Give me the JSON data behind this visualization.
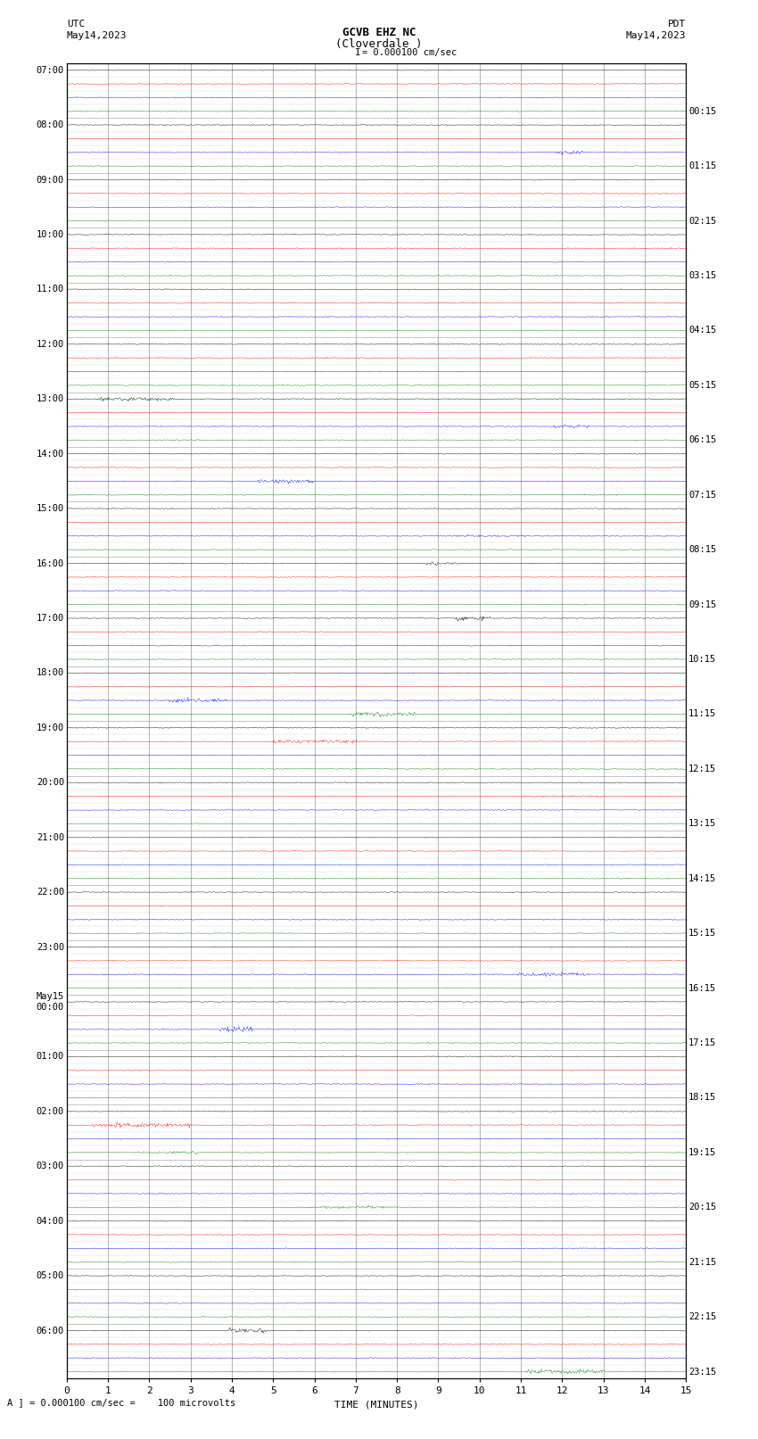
{
  "title_line1": "GCVB EHZ NC",
  "title_line2": "(Cloverdale )",
  "scale_text": "I = 0.000100 cm/sec",
  "left_header_line1": "UTC",
  "left_header_line2": "May14,2023",
  "right_header_line1": "PDT",
  "right_header_line2": "May14,2023",
  "bottom_label": "TIME (MINUTES)",
  "bottom_note": "A ] = 0.000100 cm/sec =    100 microvolts",
  "xlabel_ticks": [
    0,
    1,
    2,
    3,
    4,
    5,
    6,
    7,
    8,
    9,
    10,
    11,
    12,
    13,
    14,
    15
  ],
  "num_hour_groups": 24,
  "traces_per_hour": 4,
  "trace_colors": [
    "black",
    "red",
    "blue",
    "green"
  ],
  "left_hour_labels": [
    "07:00",
    "08:00",
    "09:00",
    "10:00",
    "11:00",
    "12:00",
    "13:00",
    "14:00",
    "15:00",
    "16:00",
    "17:00",
    "18:00",
    "19:00",
    "20:00",
    "21:00",
    "22:00",
    "23:00",
    "May15\n00:00",
    "01:00",
    "02:00",
    "03:00",
    "04:00",
    "05:00",
    "06:00"
  ],
  "right_hour_labels": [
    "00:15",
    "01:15",
    "02:15",
    "03:15",
    "04:15",
    "05:15",
    "06:15",
    "07:15",
    "08:15",
    "09:15",
    "10:15",
    "11:15",
    "12:15",
    "13:15",
    "14:15",
    "15:15",
    "16:15",
    "17:15",
    "18:15",
    "19:15",
    "20:15",
    "21:15",
    "22:15",
    "23:15"
  ],
  "bg_color": "white",
  "grid_color": "#999999",
  "noise_amp": 0.035,
  "fig_width": 8.5,
  "fig_height": 16.13,
  "dpi": 100
}
